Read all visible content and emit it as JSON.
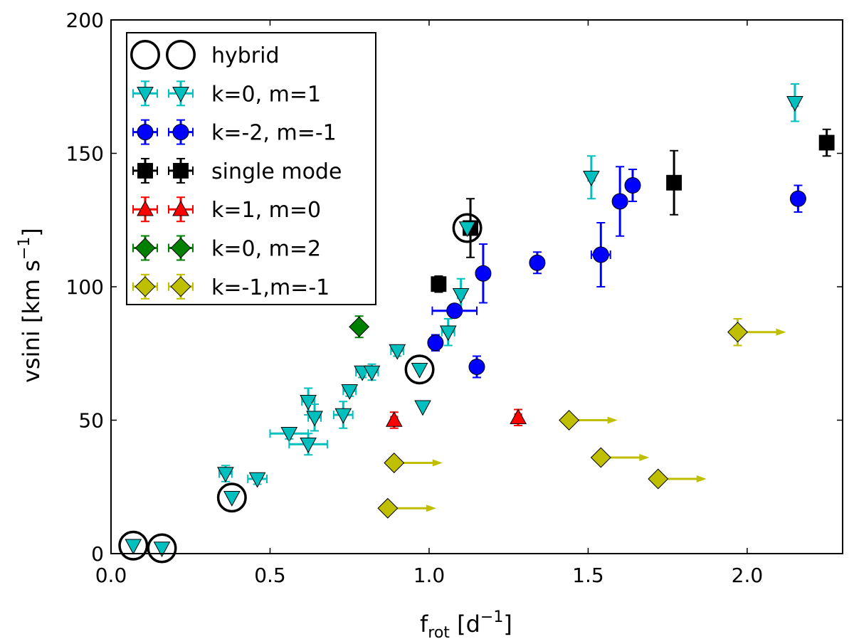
{
  "chart_data": {
    "type": "scatter",
    "title": "",
    "xlabel_main": "f",
    "xlabel_sub": "rot",
    "xlabel_unit_open": " [d",
    "xlabel_unit_sup": "−1",
    "xlabel_unit_close": "]",
    "ylabel_main": "vsini [km s",
    "ylabel_sup": "−1",
    "ylabel_close": "]",
    "xlim": [
      0.0,
      2.3
    ],
    "ylim": [
      0,
      200
    ],
    "x_ticks": [
      0.0,
      0.5,
      1.0,
      1.5,
      2.0
    ],
    "x_tick_labels": [
      "0.0",
      "0.5",
      "1.0",
      "1.5",
      "2.0"
    ],
    "y_ticks": [
      0,
      50,
      100,
      150,
      200
    ],
    "y_tick_labels": [
      "0",
      "50",
      "100",
      "150",
      "200"
    ],
    "grid": false,
    "legend_position": "top-left",
    "series": [
      {
        "name": "hybrid",
        "marker": "open-circle",
        "color": "#000000",
        "points": [
          {
            "x": 0.07,
            "y": 3
          },
          {
            "x": 0.16,
            "y": 2
          },
          {
            "x": 0.38,
            "y": 21
          },
          {
            "x": 0.97,
            "y": 69
          },
          {
            "x": 1.12,
            "y": 122
          }
        ]
      },
      {
        "name": "k=0, m=1",
        "marker": "triangle-down",
        "color": "#00BFBF",
        "points": [
          {
            "x": 0.07,
            "y": 3,
            "ex": 0,
            "ey": 0
          },
          {
            "x": 0.16,
            "y": 2,
            "ex": 0,
            "ey": 0
          },
          {
            "x": 0.36,
            "y": 30,
            "ex": 0.02,
            "ey": 3
          },
          {
            "x": 0.38,
            "y": 21,
            "ex": 0,
            "ey": 0
          },
          {
            "x": 0.46,
            "y": 28,
            "ex": 0.03,
            "ey": 2
          },
          {
            "x": 0.56,
            "y": 45,
            "ex": 0.06,
            "ey": 2
          },
          {
            "x": 0.62,
            "y": 41,
            "ex": 0.06,
            "ey": 4
          },
          {
            "x": 0.62,
            "y": 57,
            "ex": 0.02,
            "ey": 5
          },
          {
            "x": 0.64,
            "y": 51,
            "ex": 0.02,
            "ey": 5
          },
          {
            "x": 0.73,
            "y": 52,
            "ex": 0.03,
            "ey": 5
          },
          {
            "x": 0.75,
            "y": 61,
            "ex": 0.02,
            "ey": 2
          },
          {
            "x": 0.79,
            "y": 68,
            "ex": 0.02,
            "ey": 2
          },
          {
            "x": 0.82,
            "y": 68,
            "ex": 0.02,
            "ey": 3
          },
          {
            "x": 0.9,
            "y": 76,
            "ex": 0.02,
            "ey": 2
          },
          {
            "x": 0.97,
            "y": 69,
            "ex": 0,
            "ey": 0
          },
          {
            "x": 0.98,
            "y": 55,
            "ex": 0,
            "ey": 0
          },
          {
            "x": 1.06,
            "y": 83,
            "ex": 0.02,
            "ey": 5
          },
          {
            "x": 1.1,
            "y": 97,
            "ex": 0.01,
            "ey": 6
          },
          {
            "x": 1.12,
            "y": 122,
            "ex": 0,
            "ey": 0
          },
          {
            "x": 1.51,
            "y": 141,
            "ex": 0.01,
            "ey": 8
          },
          {
            "x": 2.15,
            "y": 169,
            "ex": 0.01,
            "ey": 7
          }
        ]
      },
      {
        "name": "k=-2, m=-1",
        "marker": "circle",
        "color": "#0000FF",
        "points": [
          {
            "x": 1.02,
            "y": 79,
            "ex": 0.01,
            "ey": 3
          },
          {
            "x": 1.08,
            "y": 91,
            "ex": 0.07,
            "ey": 2
          },
          {
            "x": 1.15,
            "y": 70,
            "ex": 0.01,
            "ey": 4
          },
          {
            "x": 1.17,
            "y": 105,
            "ex": 0.01,
            "ey": 11
          },
          {
            "x": 1.34,
            "y": 109,
            "ex": 0.01,
            "ey": 4
          },
          {
            "x": 1.54,
            "y": 112,
            "ex": 0.03,
            "ey": 12
          },
          {
            "x": 1.6,
            "y": 132,
            "ex": 0.01,
            "ey": 13
          },
          {
            "x": 1.64,
            "y": 138,
            "ex": 0.01,
            "ey": 6
          },
          {
            "x": 2.16,
            "y": 133,
            "ex": 0.01,
            "ey": 5
          }
        ]
      },
      {
        "name": "single mode",
        "marker": "square",
        "color": "#000000",
        "points": [
          {
            "x": 1.03,
            "y": 101,
            "ex": 0.01,
            "ey": 3
          },
          {
            "x": 1.13,
            "y": 122,
            "ex": 0.01,
            "ey": 11
          },
          {
            "x": 1.77,
            "y": 139,
            "ex": 0.01,
            "ey": 12
          },
          {
            "x": 2.25,
            "y": 154,
            "ex": 0.01,
            "ey": 5
          }
        ]
      },
      {
        "name": "k=1, m=0",
        "marker": "triangle-up",
        "color": "#FF0000",
        "points": [
          {
            "x": 0.89,
            "y": 50,
            "ex": 0.01,
            "ey": 3
          },
          {
            "x": 1.28,
            "y": 51,
            "ex": 0.01,
            "ey": 3
          }
        ]
      },
      {
        "name": "k=0, m=2",
        "marker": "diamond",
        "color": "#008000",
        "points": [
          {
            "x": 0.78,
            "y": 85,
            "ex": 0.01,
            "ey": 4
          }
        ]
      },
      {
        "name": "k=-1,m=-1",
        "marker": "diamond",
        "color": "#BFBF00",
        "lower_limit_arrows": true,
        "points": [
          {
            "x": 0.87,
            "y": 17
          },
          {
            "x": 0.89,
            "y": 34
          },
          {
            "x": 1.44,
            "y": 50
          },
          {
            "x": 1.54,
            "y": 36
          },
          {
            "x": 1.72,
            "y": 28
          },
          {
            "x": 1.97,
            "y": 83,
            "ey": 5
          }
        ]
      }
    ]
  }
}
